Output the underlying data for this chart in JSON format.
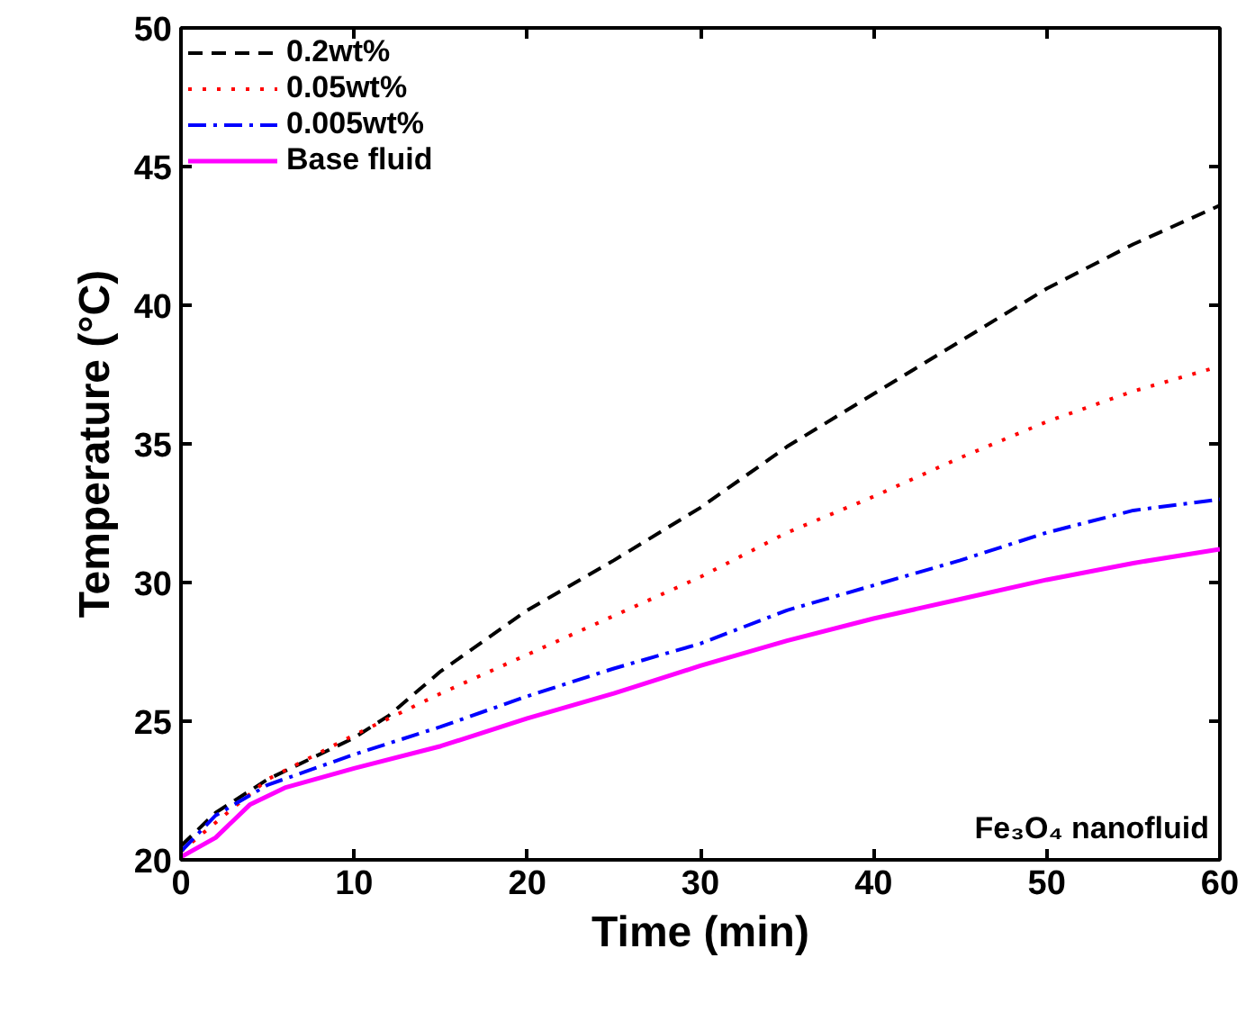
{
  "chart_data": {
    "type": "line",
    "xlabel": "Time (min)",
    "ylabel": "Temperature (°C)",
    "xlim": [
      0,
      60
    ],
    "ylim": [
      20,
      50
    ],
    "xticks": [
      0,
      10,
      20,
      30,
      40,
      50,
      60
    ],
    "yticks": [
      20,
      25,
      30,
      35,
      40,
      45,
      50
    ],
    "legend": "top left",
    "grid": false,
    "annotations": [
      "Fe₃O₄ nanofluid"
    ],
    "series": [
      {
        "name": "0.2wt%",
        "color": "#000000",
        "line_style": "dashed",
        "x": [
          0,
          2,
          5,
          10,
          12,
          15,
          20,
          25,
          30,
          35,
          40,
          45,
          50,
          55,
          60
        ],
        "values": [
          20.5,
          21.7,
          22.9,
          24.4,
          25.2,
          26.8,
          29.0,
          30.8,
          32.7,
          34.9,
          36.8,
          38.7,
          40.6,
          42.2,
          43.6
        ]
      },
      {
        "name": "0.05wt%",
        "color": "#ff0000",
        "line_style": "dotted",
        "x": [
          0,
          5,
          10,
          15,
          20,
          25,
          30,
          35,
          40,
          45,
          50,
          55,
          60
        ],
        "values": [
          20.3,
          22.9,
          24.5,
          26.0,
          27.4,
          28.8,
          30.2,
          31.8,
          33.1,
          34.5,
          35.8,
          36.9,
          37.8
        ]
      },
      {
        "name": "0.005wt%",
        "color": "#0000ff",
        "line_style": "dashdot",
        "x": [
          0,
          2,
          5,
          10,
          15,
          20,
          25,
          30,
          35,
          40,
          45,
          50,
          55,
          60
        ],
        "values": [
          20.3,
          21.6,
          22.7,
          23.8,
          24.8,
          25.9,
          26.9,
          27.8,
          29.0,
          29.9,
          30.8,
          31.8,
          32.6,
          33.0
        ]
      },
      {
        "name": "Base fluid",
        "color": "#ff00ff",
        "line_style": "solid",
        "x": [
          0,
          2,
          4,
          6,
          10,
          15,
          20,
          25,
          30,
          35,
          40,
          45,
          50,
          55,
          60
        ],
        "values": [
          20.1,
          20.8,
          22.0,
          22.6,
          23.3,
          24.1,
          25.1,
          26.0,
          27.0,
          27.9,
          28.7,
          29.4,
          30.1,
          30.7,
          31.2
        ]
      }
    ]
  }
}
